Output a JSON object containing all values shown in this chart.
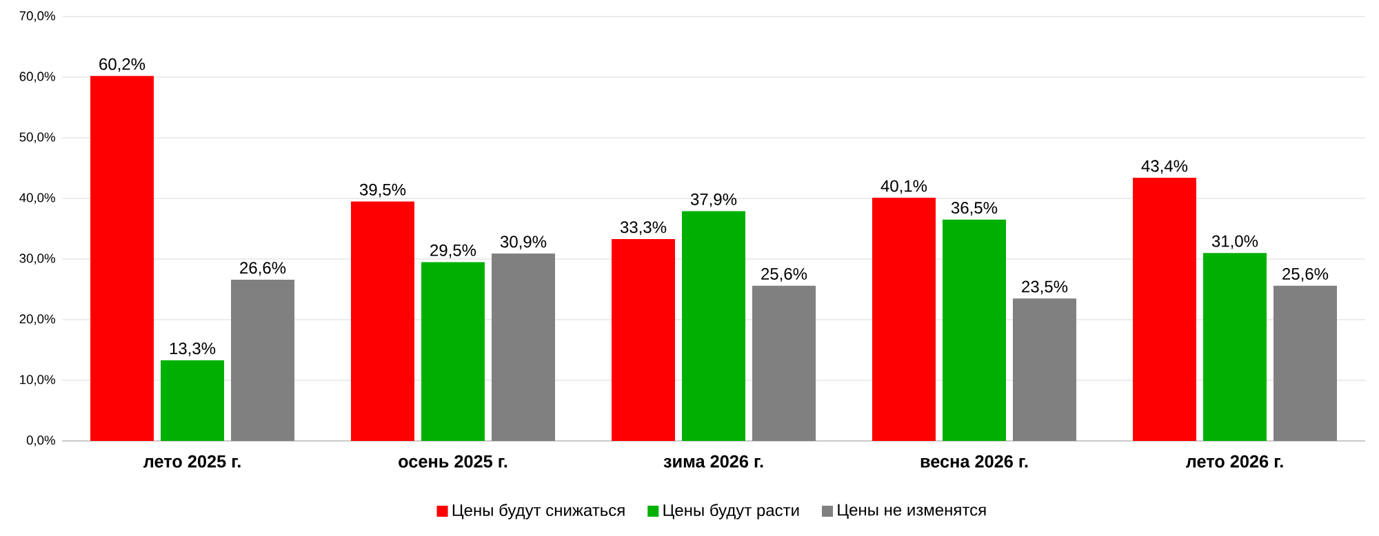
{
  "chart_data": {
    "type": "bar",
    "categories": [
      "лето 2025 г.",
      "осень 2025 г.",
      "зима 2026 г.",
      "весна 2026 г.",
      "лето 2026 г."
    ],
    "series": [
      {
        "name": "Цены будут снижаться",
        "color": "#ff0000",
        "values": [
          60.2,
          39.5,
          33.3,
          40.1,
          43.4
        ],
        "value_labels": [
          "60,2%",
          "39,5%",
          "33,3%",
          "40,1%",
          "43,4%"
        ]
      },
      {
        "name": "Цены будут расти",
        "color": "#00b000",
        "values": [
          13.3,
          29.5,
          37.9,
          36.5,
          31.0
        ],
        "value_labels": [
          "13,3%",
          "29,5%",
          "37,9%",
          "36,5%",
          "31,0%"
        ]
      },
      {
        "name": "Цены не изменятся",
        "color": "#808080",
        "values": [
          26.6,
          30.9,
          25.6,
          23.5,
          25.6
        ],
        "value_labels": [
          "26,6%",
          "30,9%",
          "25,6%",
          "23,5%",
          "25,6%"
        ]
      }
    ],
    "ylim": [
      0,
      70
    ],
    "yticks": [
      {
        "value": 0,
        "label": "0,0%"
      },
      {
        "value": 10,
        "label": "10,0%"
      },
      {
        "value": 20,
        "label": "20,0%"
      },
      {
        "value": 30,
        "label": "30,0%"
      },
      {
        "value": 40,
        "label": "40,0%"
      },
      {
        "value": 50,
        "label": "50,0%"
      },
      {
        "value": 60,
        "label": "60,0%"
      },
      {
        "value": 70,
        "label": "70,0%"
      }
    ],
    "grid": "y",
    "legend": "bottom"
  }
}
